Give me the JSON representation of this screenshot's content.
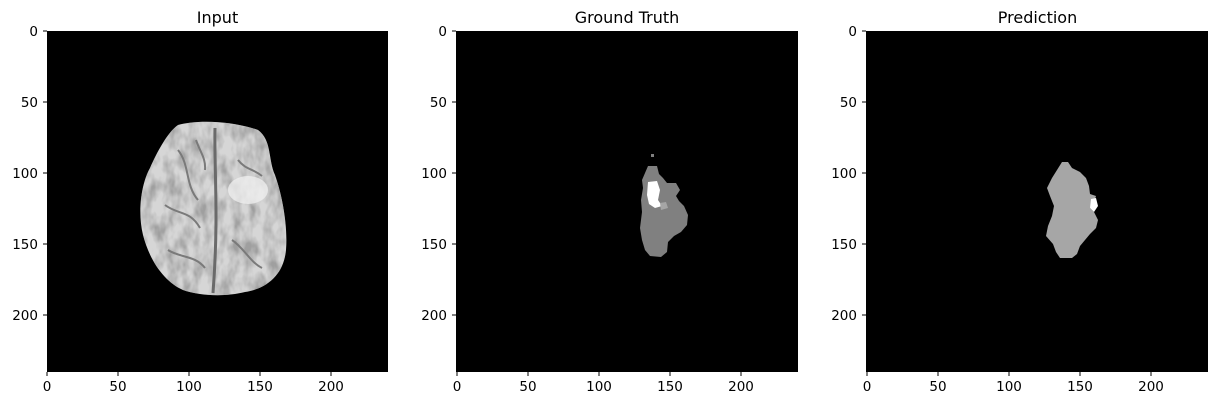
{
  "panels": [
    {
      "id": "input",
      "title": "Input",
      "image": "brain-mri-slice",
      "x_ticks": [
        "0",
        "50",
        "100",
        "150",
        "200"
      ],
      "y_ticks": [
        "0",
        "50",
        "100",
        "150",
        "200"
      ]
    },
    {
      "id": "ground-truth",
      "title": "Ground Truth",
      "image": "tumor-segmentation-mask",
      "x_ticks": [
        "0",
        "50",
        "100",
        "150",
        "200"
      ],
      "y_ticks": [
        "0",
        "50",
        "100",
        "150",
        "200"
      ]
    },
    {
      "id": "prediction",
      "title": "Prediction",
      "image": "predicted-segmentation-mask",
      "x_ticks": [
        "0",
        "50",
        "100",
        "150",
        "200"
      ],
      "y_ticks": [
        "0",
        "50",
        "100",
        "150",
        "200"
      ]
    }
  ],
  "colors": {
    "background": "#000000",
    "mask_gray": "#808080",
    "mask_light": "#a6a6a6",
    "mask_white": "#ffffff"
  }
}
